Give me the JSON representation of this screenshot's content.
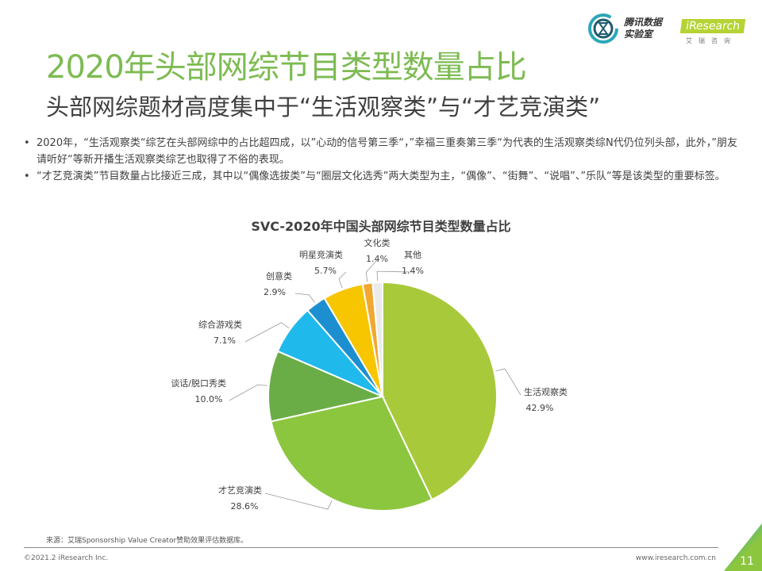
{
  "header": {
    "title": "2020年头部网综节目类型数量占比",
    "subtitle": "头部网综题材高度集中于“生活观察类”与“才艺竞演类”",
    "logo_tencent": "腾讯数据实验室",
    "logo_tencent_line1": "腾讯数据",
    "logo_tencent_line2": "实验室",
    "logo_iresearch": "iResearch",
    "logo_iresearch_cn": "艾瑞咨询"
  },
  "bullets": [
    "2020年，“生活观察类“综艺在头部网综中的占比超四成，以”心动的信号第三季“，”幸福三重奏第三季“为代表的生活观察类综N代仍位列头部，此外，”朋友请听好“等新开播生活观察类综艺也取得了不俗的表现。",
    "“才艺竞演类”节目数量占比接近三成，其中以“偶像选拔类”与“圈层文化选秀”两大类型为主，“偶像”、“街舞”、“说唱”、”乐队“等是该类型的重要标签。"
  ],
  "chart_data": {
    "type": "pie",
    "title": "SVC-2020年中国头部网综节目类型数量占比",
    "unit": "%",
    "start": "12 o'clock, clockwise",
    "slices": [
      {
        "label": "生活观察类",
        "value": 42.9,
        "display": "42.9%",
        "color": "#a8c93a"
      },
      {
        "label": "才艺竞演类",
        "value": 28.6,
        "display": "28.6%",
        "color": "#8cc63f"
      },
      {
        "label": "谈话/脱口秀类",
        "value": 10.0,
        "display": "10.0%",
        "color": "#6aad46"
      },
      {
        "label": "综合游戏类",
        "value": 7.1,
        "display": "7.1%",
        "color": "#1fb9ec"
      },
      {
        "label": "创意类",
        "value": 2.9,
        "display": "2.9%",
        "color": "#1d8fd0"
      },
      {
        "label": "明星竞演类",
        "value": 5.7,
        "display": "5.7%",
        "color": "#f7c600"
      },
      {
        "label": "文化类",
        "value": 1.4,
        "display": "1.4%",
        "color": "#f0a830"
      },
      {
        "label": "其他",
        "value": 1.4,
        "display": "1.4%",
        "color": "#ebebeb"
      }
    ]
  },
  "footer": {
    "source": "来源：艾瑞Sponsorship Value Creator赞助效果评估数据库。",
    "copyright": "©2021.2 iResearch Inc.",
    "url": "www.iresearch.com.cn",
    "page_number": "11"
  }
}
